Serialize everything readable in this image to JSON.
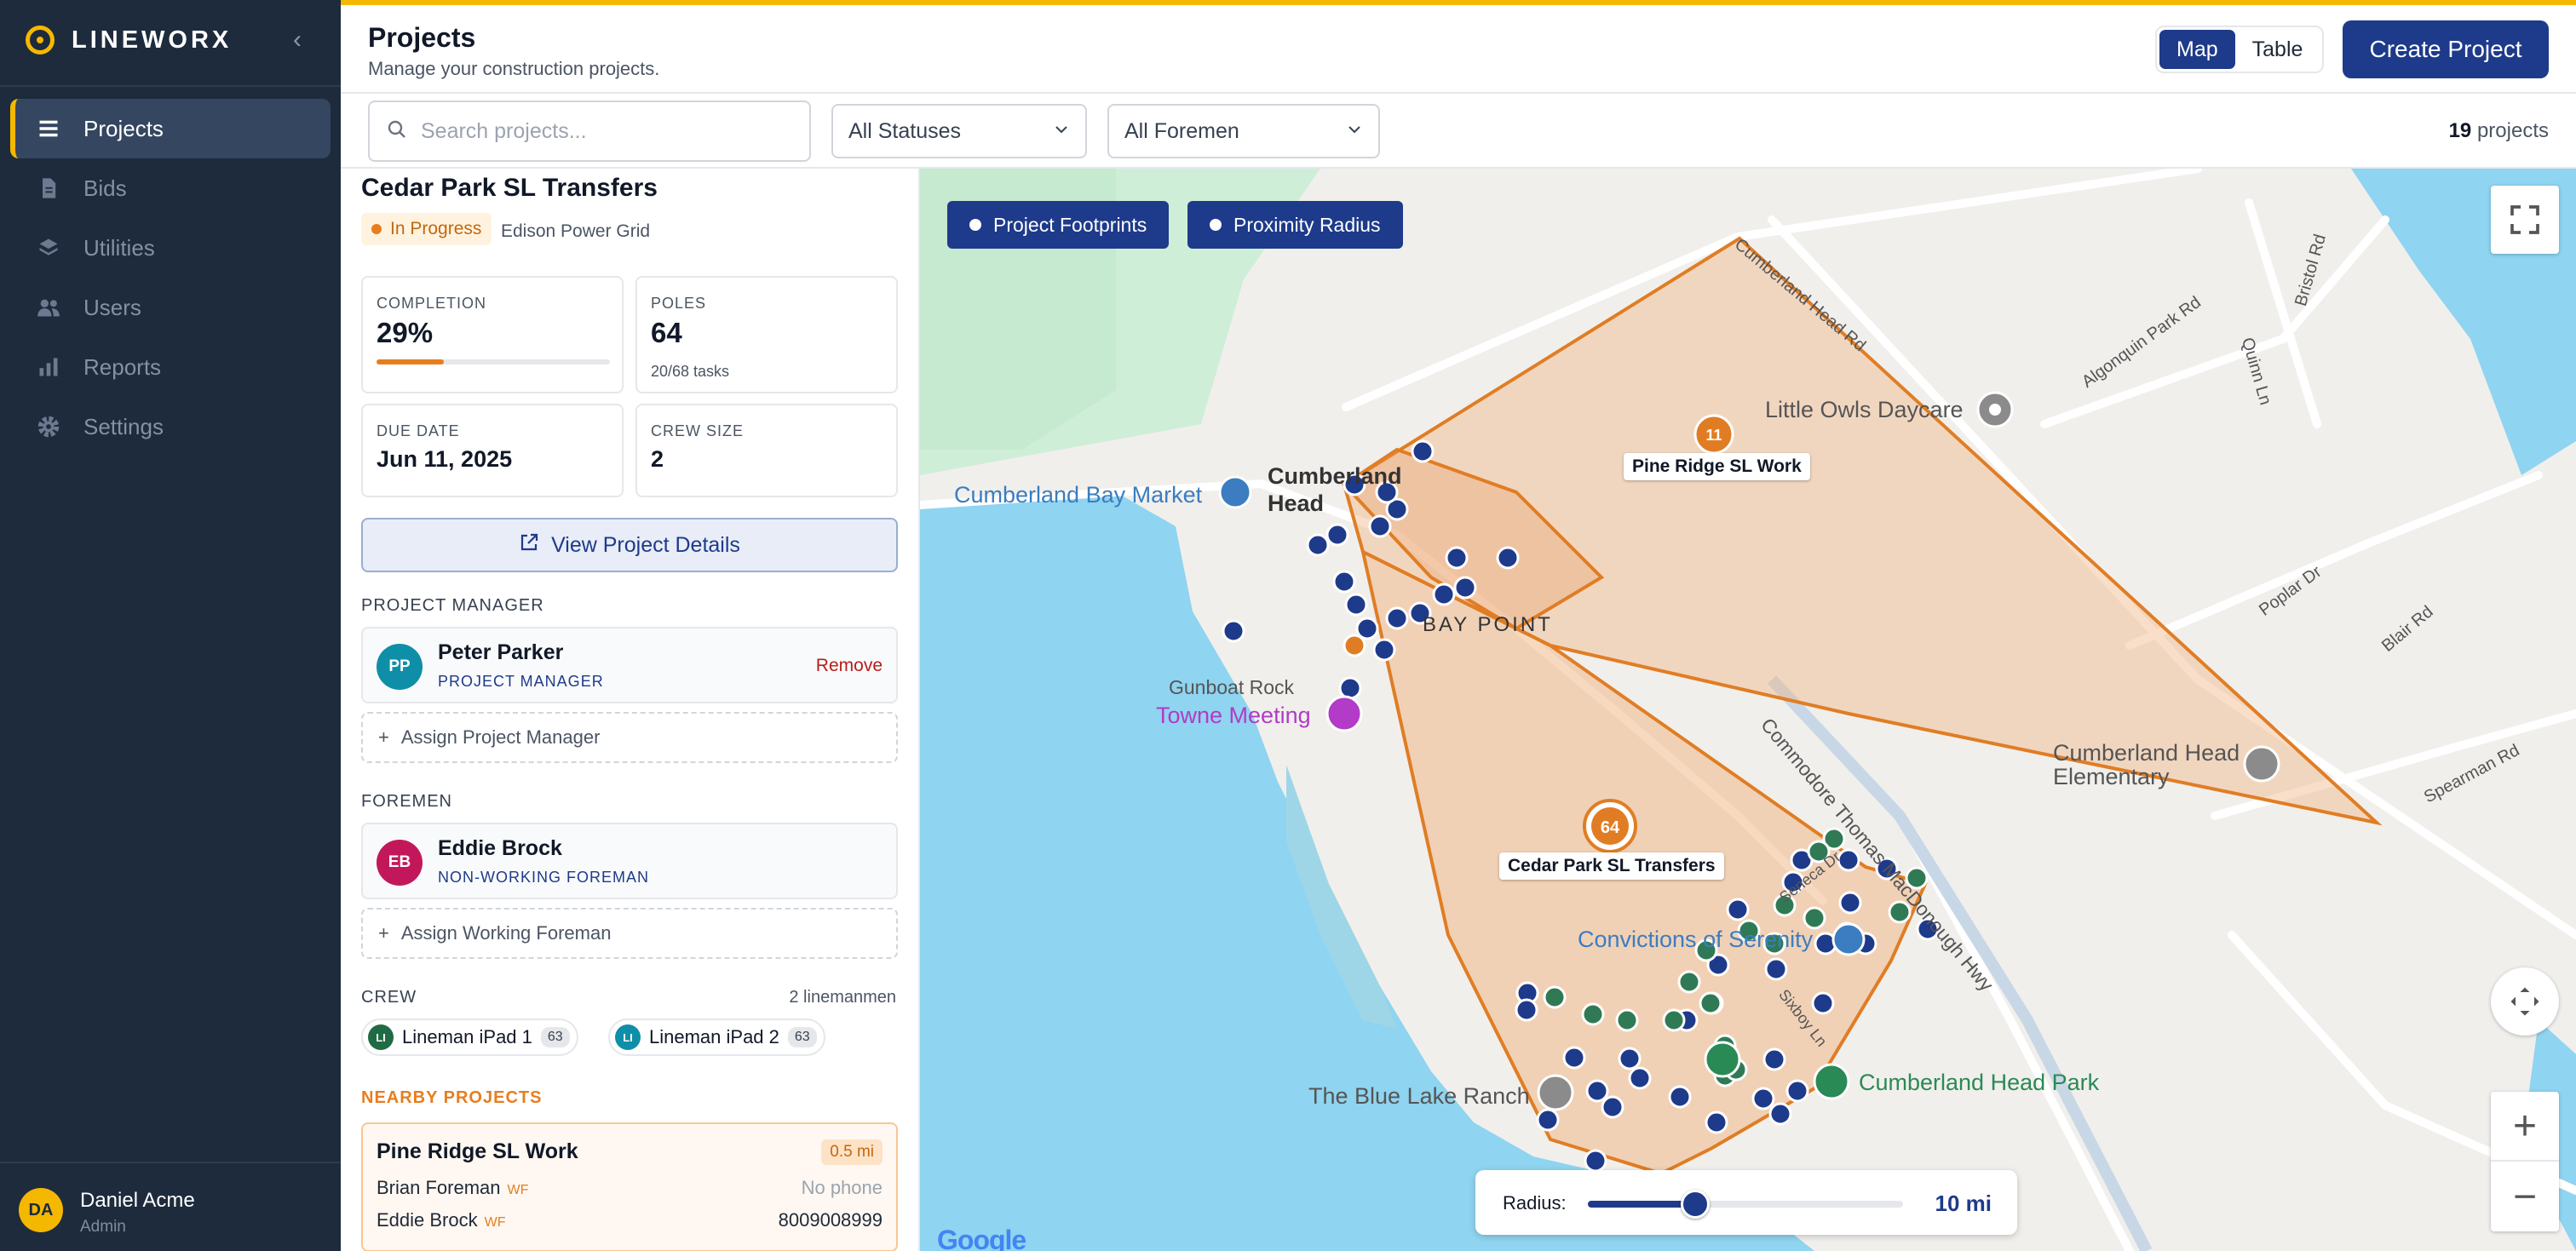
{
  "brand": {
    "name": "LINEWORX",
    "collapse_icon": "chevron-left-icon"
  },
  "nav": [
    {
      "label": "Projects",
      "icon": "projects-icon",
      "active": true
    },
    {
      "label": "Bids",
      "icon": "document-icon"
    },
    {
      "label": "Utilities",
      "icon": "layers-icon"
    },
    {
      "label": "Users",
      "icon": "users-icon"
    },
    {
      "label": "Reports",
      "icon": "bar-chart-icon"
    },
    {
      "label": "Settings",
      "icon": "gear-icon"
    }
  ],
  "user": {
    "initials": "DA",
    "name": "Daniel Acme",
    "role": "Admin"
  },
  "header": {
    "title": "Projects",
    "subtitle": "Manage your construction projects.",
    "view_map": "Map",
    "view_table": "Table",
    "create_label": "Create Project"
  },
  "filters": {
    "search_placeholder": "Search projects...",
    "status": "All Statuses",
    "foreman": "All Foremen",
    "count": "19",
    "count_suffix": "projects"
  },
  "project": {
    "name": "Cedar Park SL Transfers",
    "status": "In Progress",
    "utility": "Edison Power Grid",
    "completion_label": "COMPLETION",
    "completion": "29%",
    "completion_fraction": 0.29,
    "poles_label": "POLES",
    "poles": "64",
    "tasks": "20/68 tasks",
    "due_label": "DUE DATE",
    "due": "Jun 11, 2025",
    "crew_size_label": "CREW SIZE",
    "crew_size": "2",
    "view_details": "View Project Details"
  },
  "manager": {
    "section": "PROJECT MANAGER",
    "initials": "PP",
    "name": "Peter Parker",
    "role": "PROJECT MANAGER",
    "remove": "Remove",
    "assign": "Assign Project Manager"
  },
  "foremen": {
    "section": "FOREMEN",
    "initials": "EB",
    "name": "Eddie Brock",
    "role": "NON-WORKING FOREMAN",
    "assign": "Assign Working Foreman"
  },
  "crew": {
    "section": "CREW",
    "count": "2 linemanmen",
    "members": [
      {
        "initials": "LI",
        "name": "Lineman iPad 1",
        "num": "63",
        "color": "#1f6b45"
      },
      {
        "initials": "LI",
        "name": "Lineman iPad 2",
        "num": "63",
        "color": "#0f8ea8"
      }
    ]
  },
  "nearby": {
    "section": "NEARBY PROJECTS",
    "name": "Pine Ridge SL Work",
    "distance": "0.5 mi",
    "rows": [
      {
        "name": "Brian Foreman",
        "tag": "WF",
        "phone": "No phone"
      },
      {
        "name": "Eddie Brock",
        "tag": "WF",
        "phone": "8009008999"
      }
    ]
  },
  "map": {
    "layer_footprints": "Project Footprints",
    "layer_radius": "Proximity Radius",
    "radius_label": "Radius:",
    "radius_value": "10 mi",
    "radius_fraction": 0.34,
    "cluster_main": "64",
    "cluster_other": "11",
    "label_main": "Cedar Park SL Transfers",
    "label_other": "Pine Ridge SL Work",
    "places": [
      {
        "name": "Cumberland Bay Market",
        "color": "#3b7dc0"
      },
      {
        "name": "Cumberland Head",
        "color": "#333333"
      },
      {
        "name": "Little Owls Daycare",
        "color": "#555555"
      },
      {
        "name": "Gunboat Rock",
        "color": "#555555"
      },
      {
        "name": "Towne Meeting",
        "color": "#b23bc7"
      },
      {
        "name": "Cumberland Head Elementary",
        "color": "#555555"
      },
      {
        "name": "Convictions of Serenity",
        "color": "#3b7dc0"
      },
      {
        "name": "Cumberland Head Park",
        "color": "#2a8a55"
      },
      {
        "name": "The Blue Lake Ranch",
        "color": "#555555"
      },
      {
        "name": "BAY POINT",
        "color": "#333333"
      }
    ],
    "roads": [
      "Cumberland Head Rd",
      "Algonquin Park Rd",
      "Bristol Rd",
      "Quinn Ln",
      "Poplar Dr",
      "Blair Rd",
      "Spearman Rd",
      "Commodore Thomas MacDonough Hwy",
      "Seneca Dr",
      "Sixboy Ln"
    ],
    "attribution": "Google"
  }
}
